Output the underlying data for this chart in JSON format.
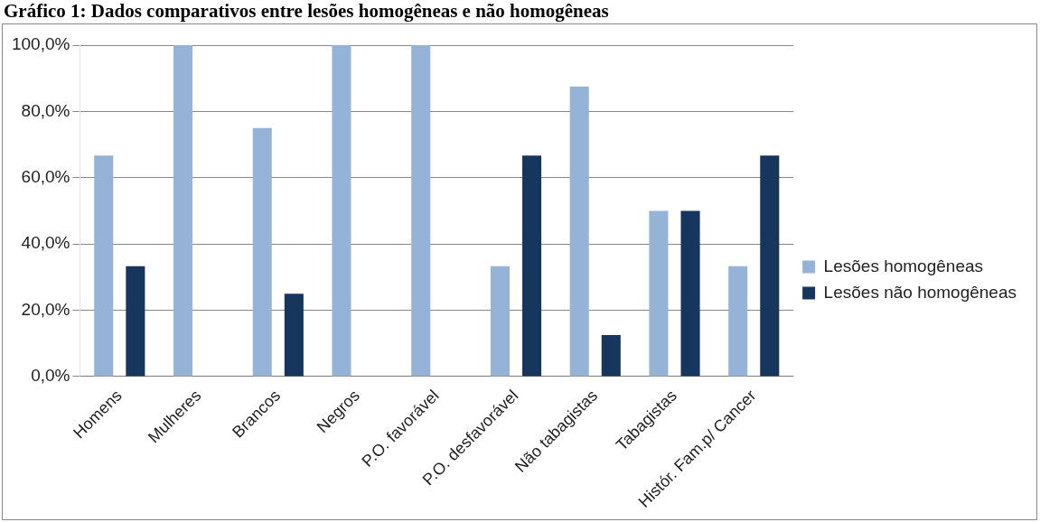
{
  "chart_data": {
    "type": "bar",
    "title": "Gráfico 1: Dados comparativos entre lesões homogêneas e não homogêneas",
    "categories": [
      "Homens",
      "Mulheres",
      "Brancos",
      "Negros",
      "P.O. favorável",
      "P.O. desfavorável",
      "Não tabagistas",
      "Tabagistas",
      "Histór. Fam.p/ Cancer"
    ],
    "series": [
      {
        "name": "Lesões homogêneas",
        "color": "#95b3d7",
        "values": [
          66.7,
          100,
          75,
          100,
          100,
          33.3,
          87.5,
          50,
          33.3
        ]
      },
      {
        "name": "Lesões não homogêneas",
        "color": "#17365d",
        "values": [
          33.3,
          0,
          25,
          0,
          0,
          66.7,
          12.5,
          50,
          66.7
        ]
      }
    ],
    "ylim": [
      0,
      100
    ],
    "yticks": [
      {
        "value": 0,
        "label": "0,0%"
      },
      {
        "value": 20,
        "label": "20,0%"
      },
      {
        "value": 40,
        "label": "40,0%"
      },
      {
        "value": 60,
        "label": "60,0%"
      },
      {
        "value": 80,
        "label": "80,0%"
      },
      {
        "value": 100,
        "label": "100,0%"
      }
    ],
    "grid": "y",
    "legend": "right"
  }
}
